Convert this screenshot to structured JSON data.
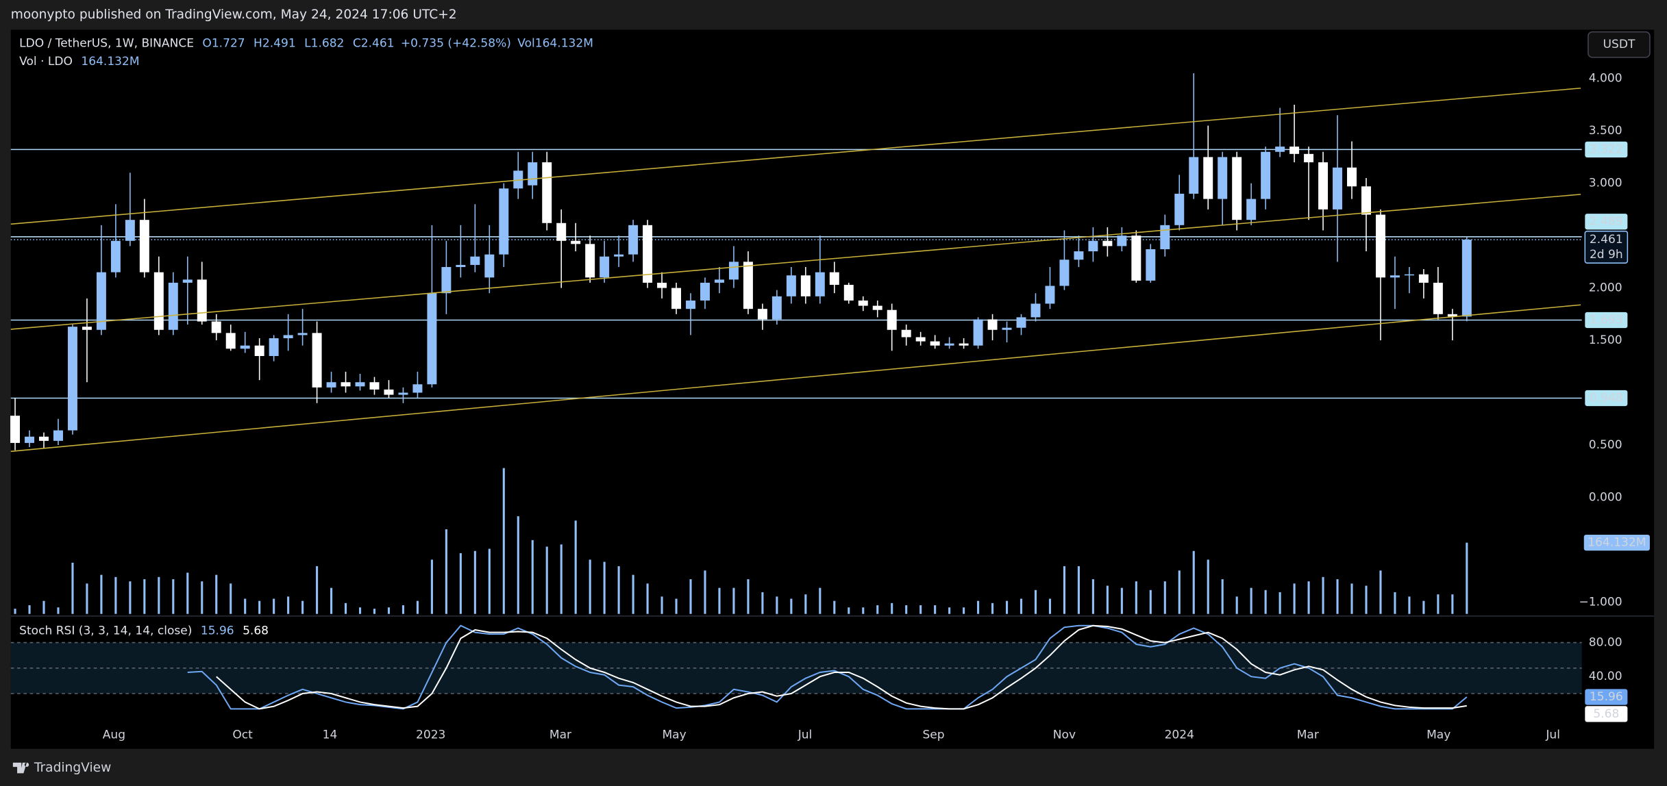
{
  "header": {
    "published": "moonypto published on TradingView.com, May 24, 2024 17:06 UTC+2",
    "brand": "TradingView",
    "currency_button": "USDT"
  },
  "chart_data": {
    "type": "candlestick",
    "legend": {
      "symbol": "LDO / TetherUS, 1W, BINANCE",
      "open": "O1.727",
      "high": "H2.491",
      "low": "L1.682",
      "close": "C2.461",
      "change": "+0.735 (+42.58%)",
      "volume": "Vol164.132M",
      "volume_title": "Vol · LDO",
      "volume_value": "164.132M"
    },
    "up_color": "#90bff9",
    "down_color": "#ffffff",
    "xlim": [
      -0.3,
      109
    ],
    "xticks": [
      {
        "value": 6.88,
        "label": "Aug"
      },
      {
        "value": 15.83,
        "label": "Oct"
      },
      {
        "value": 21.9,
        "label": "14"
      },
      {
        "value": 28.92,
        "label": "2023"
      },
      {
        "value": 37.94,
        "label": "Mar"
      },
      {
        "value": 45.86,
        "label": "May"
      },
      {
        "value": 54.96,
        "label": "Jul"
      },
      {
        "value": 63.9,
        "label": "Sep"
      },
      {
        "value": 73.0,
        "label": "Nov"
      },
      {
        "value": 81.0,
        "label": "2024"
      },
      {
        "value": 89.94,
        "label": "Mar"
      },
      {
        "value": 99.04,
        "label": "May"
      },
      {
        "value": 107.0,
        "label": "Jul"
      }
    ],
    "ylim": [
      -1.113,
      4.466
    ],
    "yticks": [
      {
        "value": 4,
        "label": "4.000"
      },
      {
        "value": 3.5,
        "label": "3.500"
      },
      {
        "value": 3,
        "label": "3.000"
      },
      {
        "value": 2,
        "label": "2.000"
      },
      {
        "value": 1.5,
        "label": "1.500"
      },
      {
        "value": 0.5,
        "label": "0.500"
      },
      {
        "value": 0,
        "label": "0.000"
      },
      {
        "value": -1,
        "label": "−1.000"
      }
    ],
    "levels": [
      3.322,
      2.489,
      1.693,
      0.948
    ],
    "level_color": "#b2d8f5",
    "countdown": "2d 9h",
    "open": [
      0.78,
      0.52,
      0.58,
      0.54,
      0.64,
      1.63,
      1.6,
      2.15,
      2.45,
      2.65,
      2.15,
      1.6,
      2.05,
      2.08,
      1.68,
      1.57,
      1.42,
      1.45,
      1.35,
      1.52,
      1.55,
      1.57,
      1.05,
      1.1,
      1.06,
      1.1,
      1.03,
      0.98,
      1.0,
      1.08,
      1.95,
      2.2,
      2.22,
      2.1,
      2.32,
      2.95,
      2.98,
      3.2,
      2.62,
      2.45,
      2.42,
      2.1,
      2.3,
      2.32,
      2.6,
      2.05,
      2.0,
      1.8,
      1.88,
      2.05,
      2.08,
      2.25,
      1.8,
      1.7,
      1.92,
      2.12,
      1.92,
      2.15,
      2.03,
      1.88,
      1.83,
      1.79,
      1.6,
      1.53,
      1.49,
      1.45,
      1.47,
      1.45,
      1.7,
      1.6,
      1.62,
      1.72,
      1.85,
      2.02,
      2.27,
      2.35,
      2.45,
      2.4,
      2.5,
      2.07,
      2.37,
      2.6,
      2.9,
      3.25,
      2.85,
      3.25,
      2.65,
      2.85,
      3.3,
      3.35,
      3.28,
      3.2,
      2.75,
      3.15,
      2.97,
      2.7,
      2.1,
      2.12,
      2.13,
      2.05,
      1.75,
      1.727
    ],
    "high": [
      0.95,
      0.64,
      0.62,
      0.75,
      1.65,
      1.9,
      2.6,
      2.8,
      3.1,
      2.85,
      2.3,
      2.15,
      2.3,
      2.25,
      1.75,
      1.65,
      1.58,
      1.52,
      1.55,
      1.75,
      1.8,
      1.68,
      1.2,
      1.2,
      1.18,
      1.15,
      1.12,
      1.05,
      1.2,
      2.6,
      2.45,
      2.6,
      2.8,
      2.6,
      3.0,
      3.3,
      3.3,
      3.3,
      2.75,
      2.62,
      2.5,
      2.45,
      2.5,
      2.65,
      2.65,
      2.15,
      2.05,
      1.95,
      2.1,
      2.2,
      2.4,
      2.35,
      1.85,
      1.98,
      2.2,
      2.2,
      2.5,
      2.25,
      2.05,
      1.92,
      1.88,
      1.85,
      1.65,
      1.58,
      1.55,
      1.53,
      1.52,
      1.72,
      1.75,
      1.68,
      1.75,
      1.95,
      2.2,
      2.55,
      2.5,
      2.58,
      2.58,
      2.58,
      2.55,
      2.42,
      2.7,
      3.08,
      4.05,
      3.55,
      3.3,
      3.3,
      3.0,
      3.35,
      3.72,
      3.75,
      3.35,
      3.3,
      3.65,
      3.4,
      3.05,
      2.75,
      2.3,
      2.2,
      2.18,
      2.2,
      1.8,
      2.491
    ],
    "low": [
      0.45,
      0.48,
      0.47,
      0.5,
      0.6,
      1.1,
      1.55,
      2.1,
      2.4,
      2.1,
      1.55,
      1.55,
      1.65,
      1.65,
      1.5,
      1.4,
      1.38,
      1.12,
      1.3,
      1.4,
      1.45,
      0.9,
      1.0,
      1.0,
      1.02,
      0.98,
      0.95,
      0.9,
      0.95,
      1.05,
      1.75,
      2.1,
      2.15,
      1.95,
      2.2,
      2.85,
      2.85,
      2.55,
      2.0,
      2.35,
      2.05,
      2.05,
      2.2,
      2.25,
      2.0,
      1.9,
      1.75,
      1.55,
      1.8,
      1.95,
      2.0,
      1.75,
      1.6,
      1.65,
      1.85,
      1.85,
      1.85,
      1.95,
      1.85,
      1.78,
      1.72,
      1.4,
      1.45,
      1.45,
      1.42,
      1.42,
      1.42,
      1.42,
      1.5,
      1.48,
      1.55,
      1.68,
      1.8,
      1.98,
      2.2,
      2.25,
      2.3,
      2.35,
      2.05,
      2.05,
      2.3,
      2.55,
      2.85,
      2.75,
      2.6,
      2.55,
      2.6,
      2.75,
      3.25,
      3.2,
      2.65,
      2.55,
      2.25,
      2.85,
      2.35,
      1.5,
      1.8,
      1.95,
      1.9,
      1.7,
      1.5,
      1.682
    ],
    "close": [
      0.52,
      0.58,
      0.54,
      0.64,
      1.63,
      1.6,
      2.15,
      2.45,
      2.65,
      2.15,
      1.6,
      2.05,
      2.08,
      1.68,
      1.57,
      1.42,
      1.45,
      1.35,
      1.52,
      1.55,
      1.57,
      1.05,
      1.1,
      1.06,
      1.1,
      1.03,
      0.98,
      1.0,
      1.08,
      1.95,
      2.2,
      2.22,
      2.3,
      2.32,
      2.95,
      3.12,
      3.2,
      2.62,
      2.45,
      2.42,
      2.1,
      2.3,
      2.32,
      2.6,
      2.05,
      2.0,
      1.8,
      1.88,
      2.05,
      2.08,
      2.25,
      1.8,
      1.7,
      1.92,
      2.12,
      1.92,
      2.15,
      2.03,
      1.88,
      1.83,
      1.79,
      1.6,
      1.53,
      1.49,
      1.45,
      1.47,
      1.45,
      1.7,
      1.6,
      1.62,
      1.72,
      1.85,
      2.02,
      2.27,
      2.35,
      2.45,
      2.4,
      2.5,
      2.07,
      2.37,
      2.6,
      2.9,
      3.25,
      2.85,
      3.25,
      2.65,
      2.85,
      3.3,
      3.35,
      3.28,
      3.2,
      2.75,
      3.15,
      2.97,
      2.7,
      2.1,
      2.12,
      2.13,
      2.05,
      1.75,
      1.727,
      2.461
    ],
    "volume": [
      12,
      20,
      30,
      15,
      118,
      70,
      90,
      85,
      75,
      80,
      85,
      80,
      95,
      75,
      90,
      70,
      35,
      30,
      35,
      40,
      30,
      110,
      60,
      25,
      15,
      12,
      15,
      20,
      30,
      125,
      195,
      140,
      145,
      150,
      336,
      225,
      170,
      155,
      160,
      215,
      125,
      120,
      110,
      90,
      70,
      40,
      35,
      80,
      100,
      60,
      60,
      80,
      50,
      40,
      35,
      45,
      60,
      30,
      15,
      15,
      20,
      25,
      20,
      20,
      20,
      15,
      15,
      30,
      25,
      30,
      35,
      55,
      35,
      110,
      110,
      80,
      65,
      60,
      75,
      55,
      75,
      100,
      145,
      125,
      80,
      40,
      60,
      55,
      50,
      70,
      75,
      85,
      80,
      70,
      65,
      100,
      50,
      40,
      30,
      45,
      45,
      164.132
    ],
    "volume_color": "#90bff9",
    "vol_ylim": [
      0,
      367
    ],
    "stoch": {
      "title": "Stoch RSI (3, 3, 14, 14, close)",
      "ylim": [
        -13.75,
        110
      ],
      "yticks": [
        {
          "value": 80,
          "label": "80.00"
        },
        {
          "value": 40,
          "label": "40.00"
        }
      ],
      "bands": [
        80,
        50,
        20
      ],
      "k": {
        "color": "#6ea8f5",
        "values": [
          null,
          null,
          null,
          null,
          null,
          null,
          null,
          null,
          null,
          null,
          null,
          null,
          45,
          46,
          30,
          2,
          2,
          2,
          10,
          18,
          25,
          20,
          15,
          10,
          7,
          6,
          4,
          2,
          10,
          45,
          80,
          100,
          92,
          90,
          90,
          97,
          90,
          78,
          62,
          52,
          45,
          42,
          30,
          28,
          18,
          10,
          3,
          4,
          6,
          10,
          25,
          22,
          18,
          10,
          28,
          38,
          45,
          47,
          40,
          25,
          18,
          8,
          2,
          2,
          2,
          2,
          2,
          15,
          25,
          40,
          50,
          60,
          85,
          98,
          100,
          100,
          97,
          92,
          78,
          75,
          78,
          90,
          97,
          90,
          75,
          50,
          40,
          38,
          50,
          55,
          50,
          40,
          18,
          15,
          10,
          5,
          2,
          2,
          2,
          2,
          2,
          15.96
        ]
      },
      "d": {
        "color": "#ffffff",
        "values": [
          null,
          null,
          null,
          null,
          null,
          null,
          null,
          null,
          null,
          null,
          null,
          null,
          null,
          null,
          40,
          25,
          10,
          2,
          5,
          12,
          20,
          22,
          20,
          15,
          10,
          7,
          5,
          3,
          5,
          20,
          50,
          85,
          95,
          92,
          92,
          93,
          92,
          85,
          72,
          60,
          50,
          45,
          38,
          33,
          25,
          17,
          10,
          5,
          5,
          7,
          15,
          20,
          22,
          17,
          20,
          30,
          40,
          45,
          45,
          38,
          28,
          17,
          9,
          5,
          3,
          2,
          2,
          7,
          15,
          27,
          38,
          50,
          65,
          82,
          95,
          100,
          99,
          96,
          89,
          82,
          80,
          84,
          88,
          92,
          85,
          72,
          55,
          45,
          42,
          48,
          52,
          48,
          36,
          25,
          16,
          10,
          6,
          4,
          3,
          3,
          3,
          5.68
        ]
      }
    }
  }
}
